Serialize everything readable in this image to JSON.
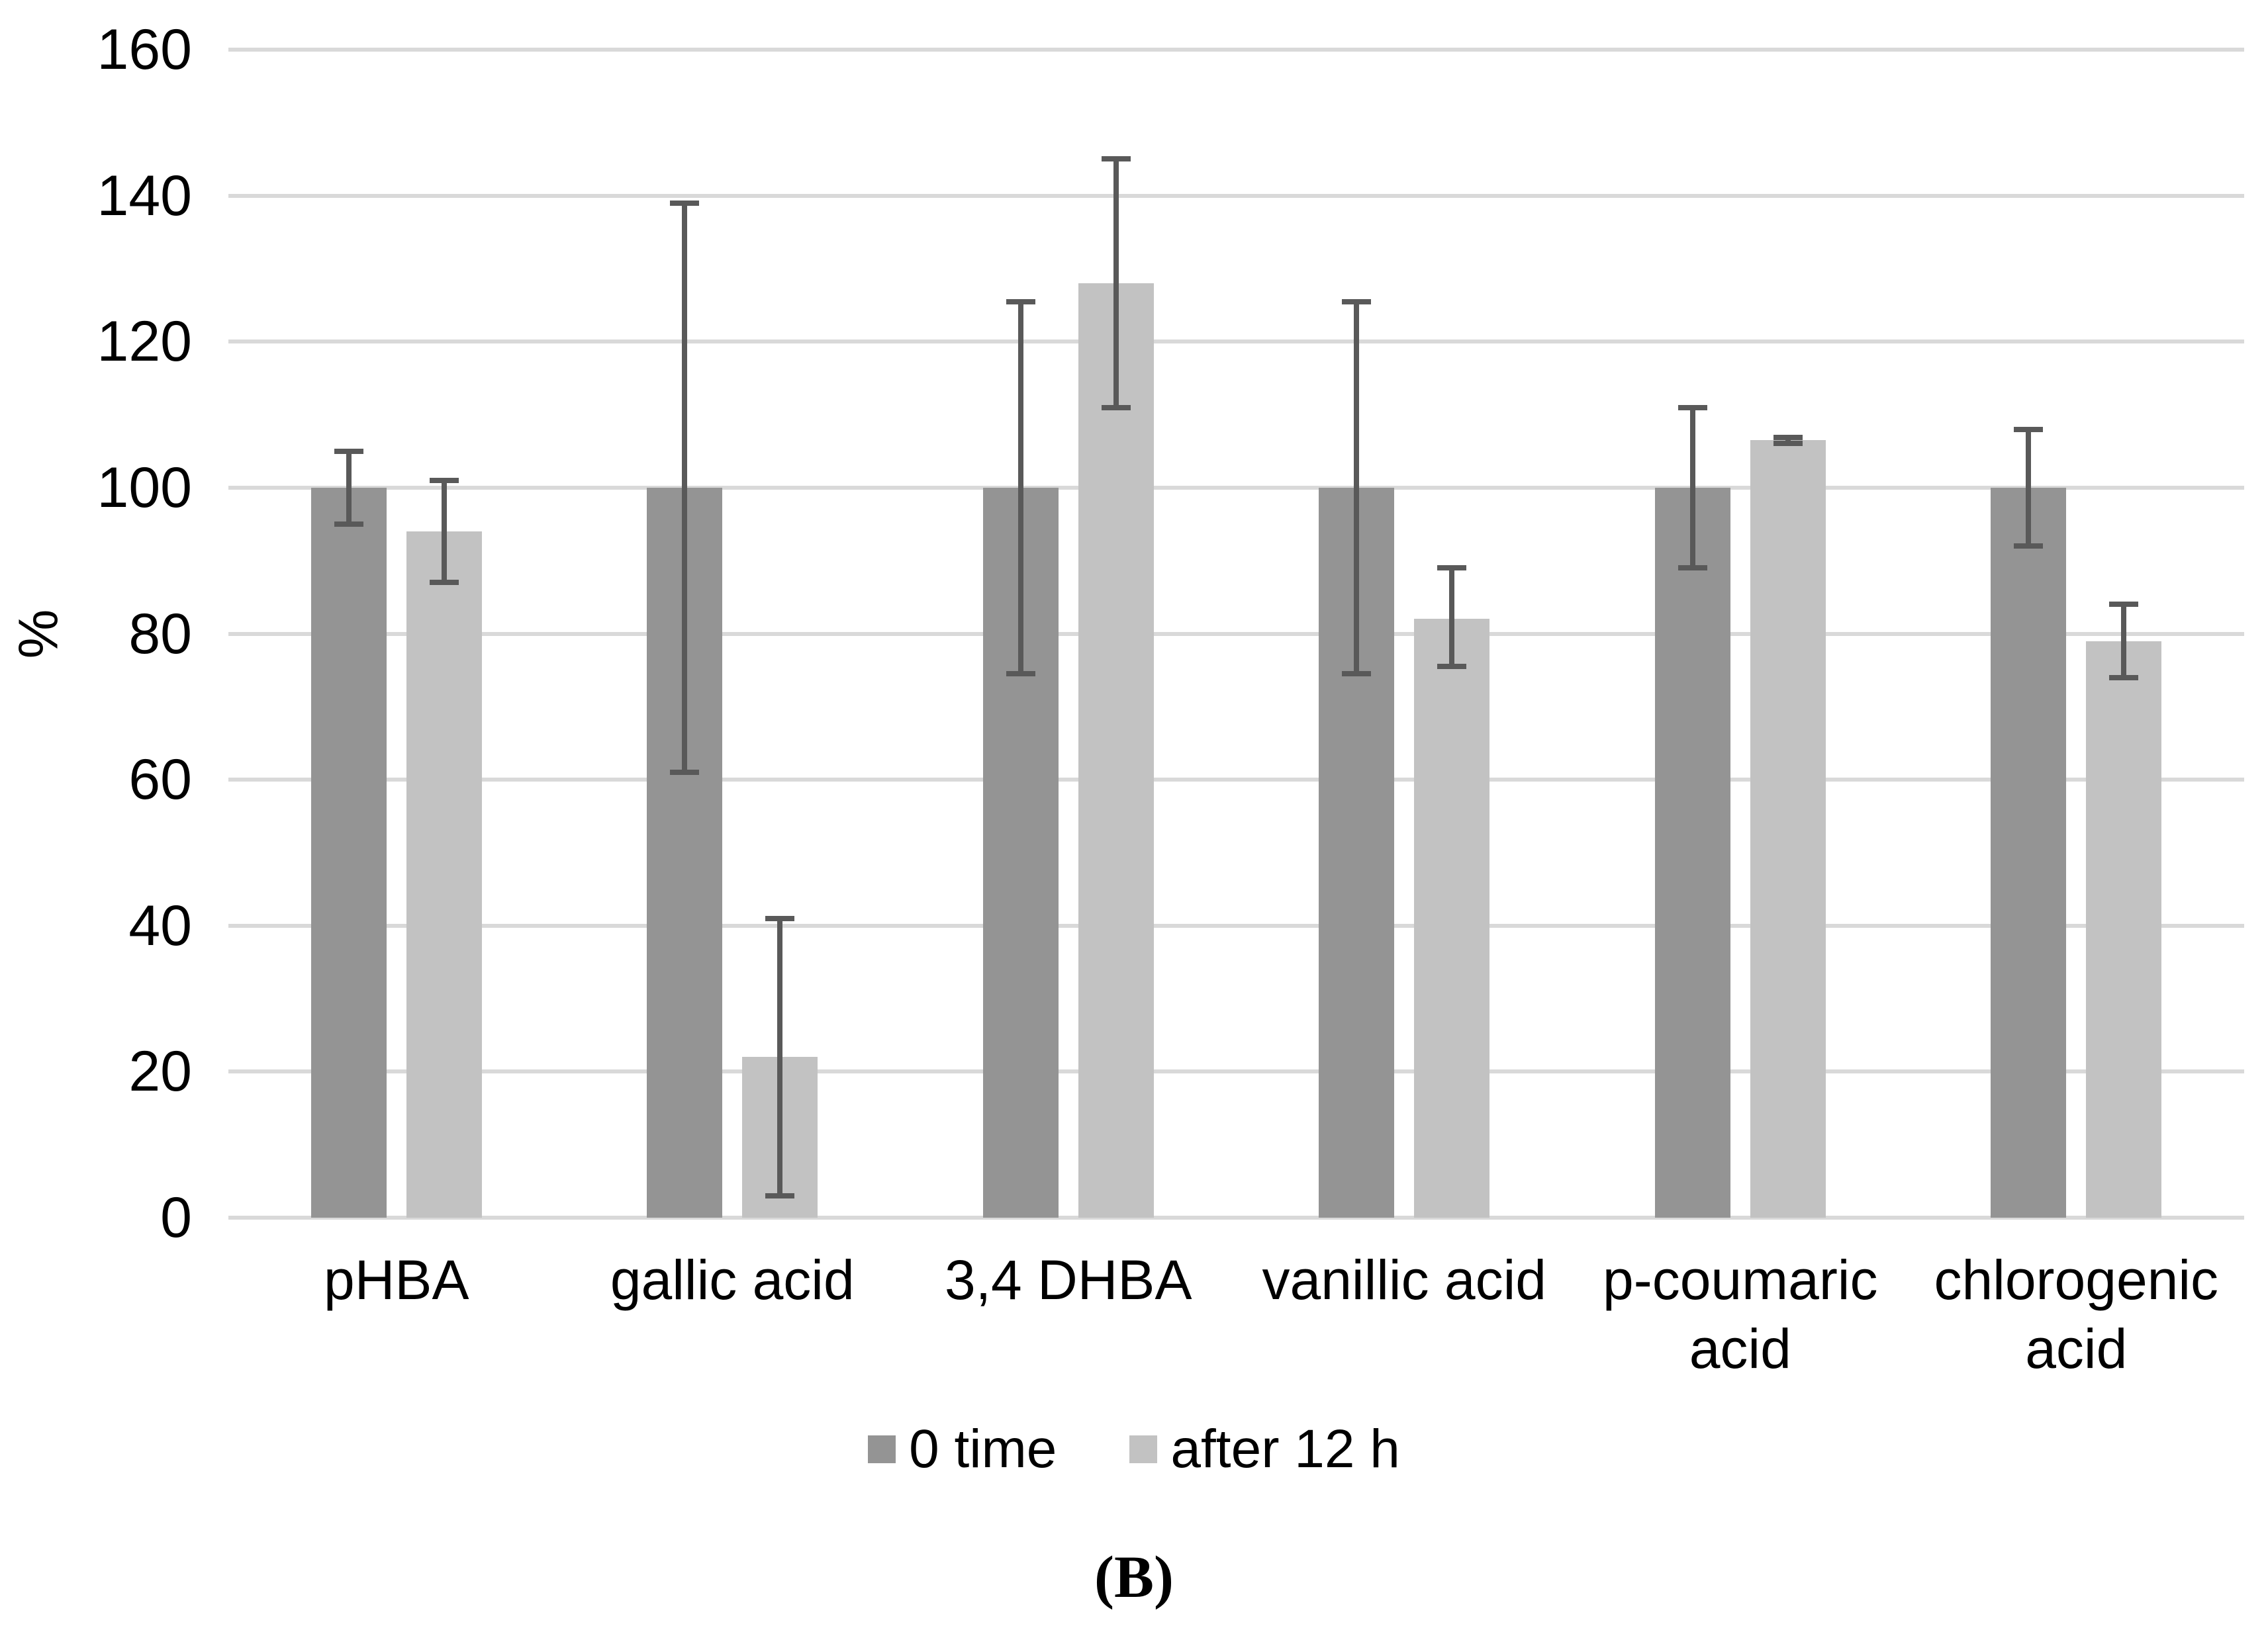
{
  "figure": {
    "caption": "(B)"
  },
  "chart_data": {
    "type": "bar",
    "title": "",
    "xlabel": "",
    "ylabel": "%",
    "ylim": [
      0,
      160
    ],
    "ytick_interval": 20,
    "yticks": [
      0,
      20,
      40,
      60,
      80,
      100,
      120,
      140,
      160
    ],
    "grid": true,
    "legend_position": "bottom-center",
    "gridline_color": "#d9d9d9",
    "error_bar_color": "#595959",
    "categories": [
      "pHBA",
      "gallic acid",
      "3,4 DHBA",
      "vanillic acid",
      "p-coumaric\nacid",
      "chlorogenic\nacid"
    ],
    "series": [
      {
        "name": "0 time",
        "color": "#949494",
        "values": [
          100,
          100,
          100,
          100,
          100,
          100
        ],
        "error_low": [
          95,
          61,
          74.5,
          74.5,
          89,
          92
        ],
        "error_high": [
          105,
          139,
          125.5,
          125.5,
          111,
          108
        ]
      },
      {
        "name": "after 12 h",
        "color": "#c2c2c2",
        "values": [
          94,
          22,
          128,
          82,
          106.5,
          79
        ],
        "error_low": [
          87,
          3,
          111,
          75.5,
          106.1,
          74
        ],
        "error_high": [
          101,
          41,
          145,
          89,
          106.9,
          84
        ]
      }
    ]
  }
}
